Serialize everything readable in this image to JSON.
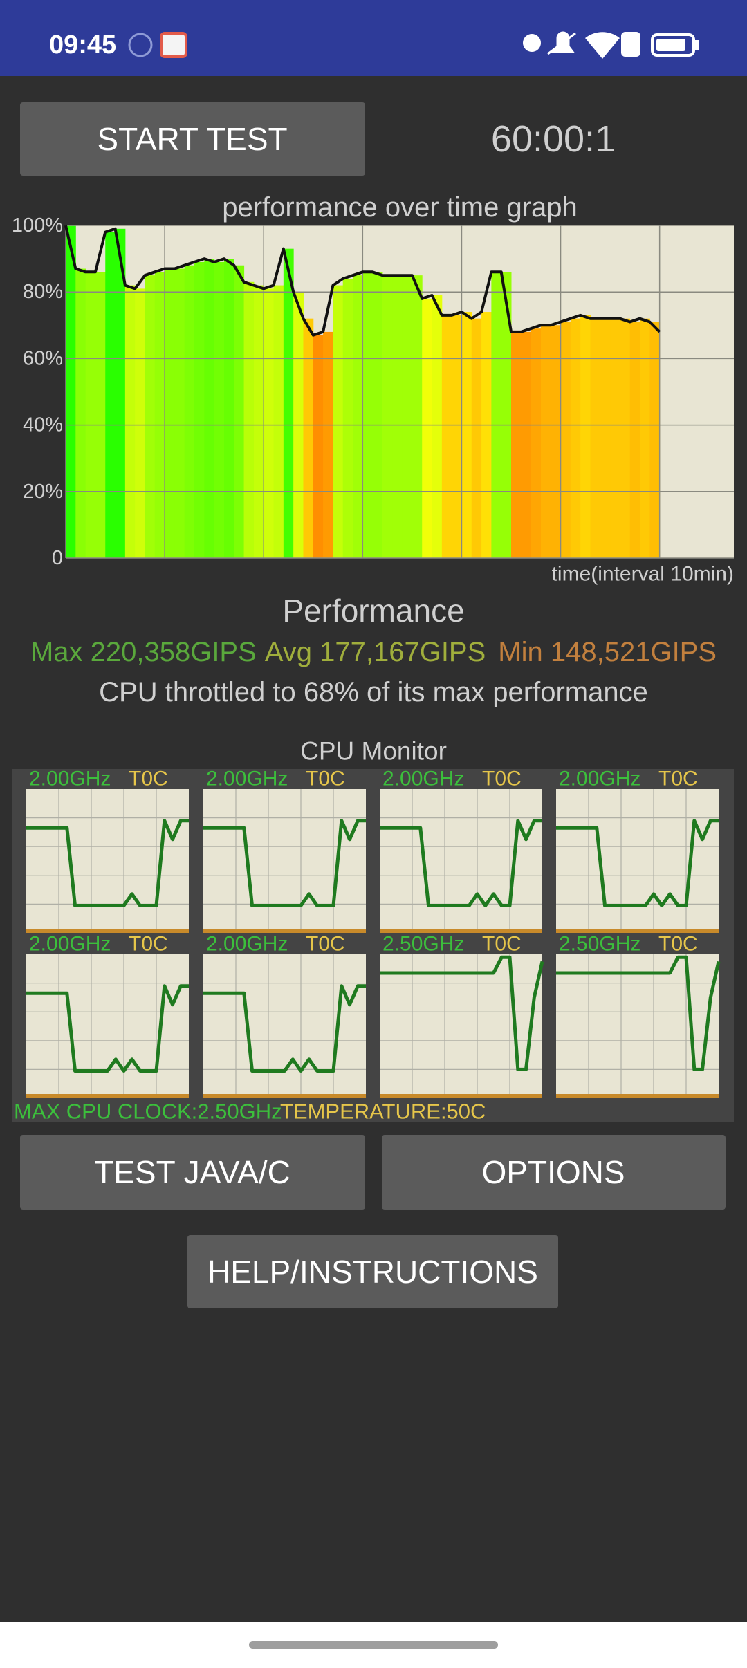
{
  "status_bar": {
    "time": "09:45"
  },
  "start_button": "START TEST",
  "timer": "60:00:1",
  "performance_graph": {
    "title": "performance over time graph",
    "x_label": "time(interval 10min)",
    "ylim": [
      0,
      100
    ],
    "yticks": [
      0,
      {
        "value": 20,
        "label": "20%"
      },
      {
        "value": 40,
        "label": "40%"
      },
      {
        "value": 60,
        "label": "60%"
      },
      {
        "value": 80,
        "label": "80%"
      },
      {
        "value": 100,
        "label": "100%"
      }
    ],
    "xlim": [
      0,
      67.5
    ],
    "xgrid": [
      0,
      10,
      20,
      30,
      40,
      50,
      60
    ],
    "x": [
      0,
      1,
      2,
      3,
      4,
      5,
      6,
      7,
      8,
      9,
      10,
      11,
      12,
      13,
      14,
      15,
      16,
      17,
      18,
      19,
      20,
      21,
      22,
      23,
      24,
      25,
      26,
      27,
      28,
      29,
      30,
      31,
      32,
      33,
      34,
      35,
      36,
      37,
      38,
      39,
      40,
      41,
      42,
      43,
      44,
      45,
      46,
      47,
      48,
      49,
      50,
      51,
      52,
      53,
      54,
      55,
      56,
      57,
      58,
      59,
      60
    ],
    "values": [
      100,
      87,
      86,
      86,
      98,
      99,
      82,
      81,
      85,
      86,
      87,
      87,
      88,
      89,
      90,
      89,
      90,
      88,
      83,
      82,
      81,
      82,
      93,
      80,
      72,
      67,
      68,
      82,
      84,
      85,
      86,
      86,
      85,
      85,
      85,
      85,
      78,
      79,
      73,
      73,
      74,
      72,
      74,
      86,
      86,
      68,
      68,
      69,
      70,
      70,
      71,
      72,
      73,
      72,
      72,
      72,
      72,
      71,
      72,
      71,
      68
    ]
  },
  "performance": {
    "heading": "Performance",
    "max": "Max 220,358GIPS",
    "avg": "Avg 177,167GIPS",
    "min": "Min 148,521GIPS",
    "throttle": "CPU throttled to 68% of its max performance"
  },
  "cpu_monitor": {
    "title": "CPU Monitor",
    "ylim": [
      0,
      100
    ],
    "cores": [
      {
        "frequency": "2.00GHz",
        "temperature": "T0C",
        "values": [
          73,
          73,
          73,
          73,
          73,
          73,
          19,
          19,
          19,
          19,
          19,
          19,
          19,
          27,
          19,
          19,
          19,
          78,
          65,
          78,
          78
        ]
      },
      {
        "frequency": "2.00GHz",
        "temperature": "T0C",
        "values": [
          73,
          73,
          73,
          73,
          73,
          73,
          19,
          19,
          19,
          19,
          19,
          19,
          19,
          27,
          19,
          19,
          19,
          78,
          65,
          78,
          78
        ]
      },
      {
        "frequency": "2.00GHz",
        "temperature": "T0C",
        "values": [
          73,
          73,
          73,
          73,
          73,
          73,
          19,
          19,
          19,
          19,
          19,
          19,
          27,
          19,
          27,
          19,
          19,
          78,
          65,
          78,
          78
        ]
      },
      {
        "frequency": "2.00GHz",
        "temperature": "T0C",
        "values": [
          73,
          73,
          73,
          73,
          73,
          73,
          19,
          19,
          19,
          19,
          19,
          19,
          27,
          19,
          27,
          19,
          19,
          78,
          65,
          78,
          78
        ]
      },
      {
        "frequency": "2.00GHz",
        "temperature": "T0C",
        "values": [
          73,
          73,
          73,
          73,
          73,
          73,
          19,
          19,
          19,
          19,
          19,
          27,
          19,
          27,
          19,
          19,
          19,
          78,
          65,
          78,
          78
        ]
      },
      {
        "frequency": "2.00GHz",
        "temperature": "T0C",
        "values": [
          73,
          73,
          73,
          73,
          73,
          73,
          19,
          19,
          19,
          19,
          19,
          27,
          19,
          27,
          19,
          19,
          19,
          78,
          65,
          78,
          78
        ]
      },
      {
        "frequency": "2.50GHz",
        "temperature": "T0C",
        "values": [
          87,
          87,
          87,
          87,
          87,
          87,
          87,
          87,
          87,
          87,
          87,
          87,
          87,
          87,
          87,
          98,
          98,
          20,
          20,
          70,
          95
        ]
      },
      {
        "frequency": "2.50GHz",
        "temperature": "T0C",
        "values": [
          87,
          87,
          87,
          87,
          87,
          87,
          87,
          87,
          87,
          87,
          87,
          87,
          87,
          87,
          87,
          98,
          98,
          20,
          20,
          70,
          95
        ]
      }
    ],
    "max_clock": "MAX CPU CLOCK:2.50GHz",
    "temperature": "TEMPERATURE:50C"
  },
  "buttons": {
    "test_java_c": "TEST JAVA/C",
    "options": "OPTIONS",
    "help": "HELP/INSTRUCTIONS"
  }
}
